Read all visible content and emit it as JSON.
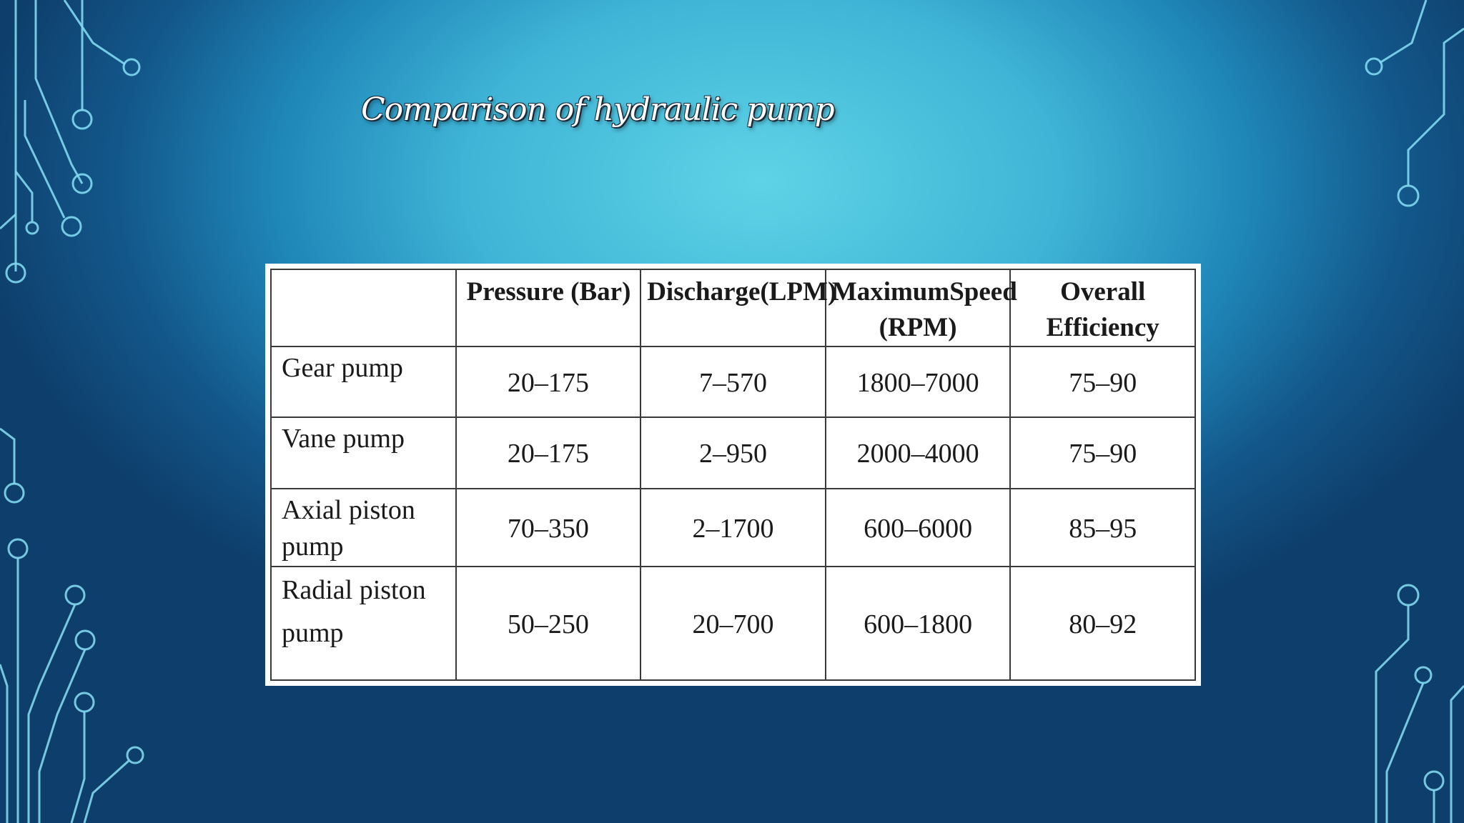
{
  "title": "Comparison of hydraulic pump",
  "table": {
    "headers": [
      "",
      "Pressure (Bar)",
      "Discharge(LPM)",
      "MaximumSpeed (RPM)",
      "Overall Efficiency"
    ],
    "rows": [
      {
        "name": "Gear pump",
        "pressure": "20–175",
        "discharge": "7–570",
        "speed": "1800–7000",
        "efficiency": "75–90"
      },
      {
        "name": "Vane pump",
        "pressure": "20–175",
        "discharge": "2–950",
        "speed": "2000–4000",
        "efficiency": "75–90"
      },
      {
        "name": "Axial piston pump",
        "pressure": "70–350",
        "discharge": "2–1700",
        "speed": "600–6000",
        "efficiency": "85–95"
      },
      {
        "name": "Radial piston pump",
        "pressure": "50–250",
        "discharge": "20–700",
        "speed": "600–1800",
        "efficiency": "80–92"
      }
    ]
  },
  "colors": {
    "background_center": "#5ed3e6",
    "background_edge": "#0e3f6c",
    "circuit_lines": "#7fd8ee",
    "table_background": "#ffffff",
    "table_border": "#3a3a3a"
  }
}
